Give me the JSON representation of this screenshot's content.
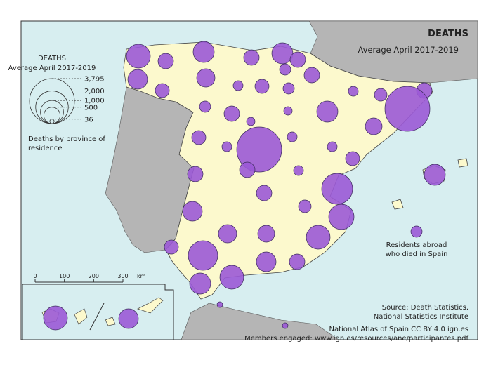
{
  "title": "DEATHS",
  "subtitle": "Average April 2017-2019",
  "legend": {
    "title": "DEATHS",
    "subtitle": "Average April 2017-2019",
    "sizes": [
      {
        "value": 3795,
        "label": "3,795"
      },
      {
        "value": 2000,
        "label": "2,000"
      },
      {
        "value": 1000,
        "label": "1,000"
      },
      500,
      36
    ],
    "note": [
      "Deaths by province of",
      "residence"
    ]
  },
  "abroad_label": [
    "Residents abroad",
    "who died in Spain"
  ],
  "province_deaths": [
    1071,
    448,
    726,
    371,
    834,
    448,
    834,
    448,
    237,
    448,
    237,
    626,
    182,
    371,
    182,
    300,
    448,
    3795,
    534,
    834,
    237,
    448,
    133,
    133,
    371,
    182,
    3795,
    182,
    182,
    371,
    448,
    448,
    182,
    1794,
    726,
    448,
    300,
    1201,
    626,
    534,
    1071,
    371,
    1634,
    726,
    448,
    834,
    1071,
    59,
    59,
    834,
    1071,
    726,
    237
  ],
  "scale_bar": {
    "ticks": [
      0,
      100,
      200,
      300
    ],
    "unit": "km"
  },
  "source": [
    "Source: Death Statistics.",
    "National Statistics Institute"
  ],
  "footer": [
    "National Atlas of Spain CC BY 4.0 ign.es",
    "Members engaged: www.ign.es/resources/ane/participantes.pdf"
  ]
}
